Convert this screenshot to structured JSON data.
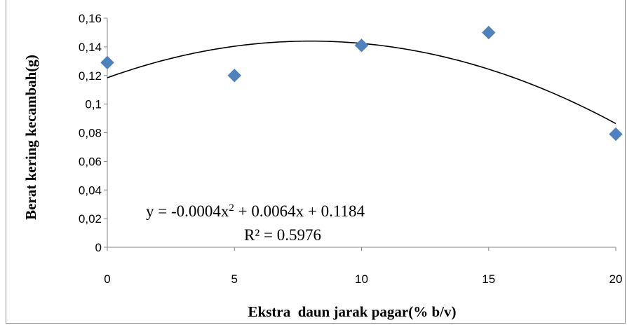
{
  "chart_data": {
    "type": "scatter",
    "title": "",
    "xlabel": "Ekstra  daun jarak pagar(% b/v)",
    "ylabel": "Berat kering kecambah(g)",
    "xlim": [
      0,
      20
    ],
    "ylim": [
      0,
      0.16
    ],
    "x_ticks": [
      0,
      5,
      10,
      15,
      20
    ],
    "y_ticks": [
      0,
      0.02,
      0.04,
      0.06,
      0.08,
      0.1,
      0.12,
      0.14,
      0.16
    ],
    "x_tick_labels": [
      "0",
      "5",
      "10",
      "15",
      "20"
    ],
    "y_tick_labels": [
      "0",
      "0,02",
      "0,04",
      "0,06",
      "0,08",
      "0,1",
      "0,12",
      "0,14",
      "0,16"
    ],
    "grid": false,
    "legend": "none",
    "series": [
      {
        "x": [
          0,
          5,
          10,
          15,
          20
        ],
        "y": [
          0.129,
          0.12,
          0.141,
          0.15,
          0.079
        ],
        "marker": "diamond",
        "color": "#4f81bd"
      }
    ],
    "trendline": {
      "type": "polynomial",
      "coefficients": [
        -0.0004,
        0.0064,
        0.1184
      ],
      "color": "#000000"
    },
    "annotations": {
      "equation_prefix": "y = -0.0004x",
      "equation_exponent": "2",
      "equation_suffix": " + 0.0064x + 0.1184",
      "r_squared": "R² = 0.5976"
    }
  }
}
